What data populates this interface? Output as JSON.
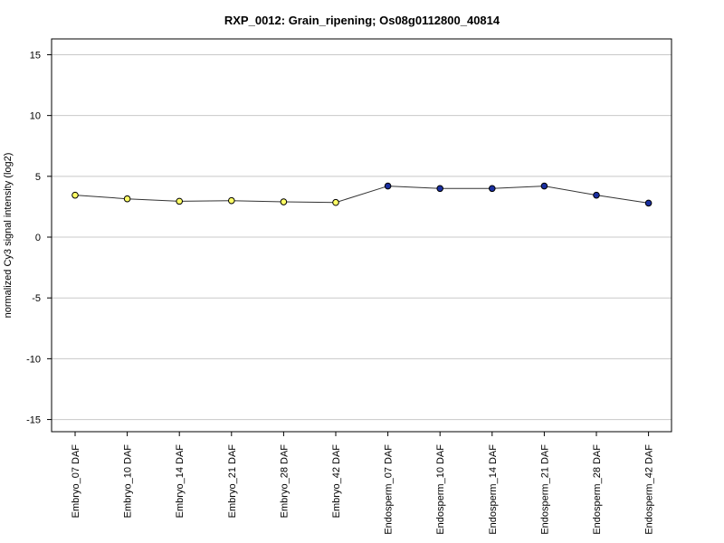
{
  "chart_data": {
    "type": "line",
    "title": "RXP_0012: Grain_ripening; Os08g0112800_40814",
    "xlabel": "",
    "ylabel": "normalized Cy3 signal intensity (log2)",
    "ylim": [
      -16,
      16.3
    ],
    "yticks": [
      15,
      10,
      5,
      0,
      -5,
      -10,
      -15
    ],
    "grid": true,
    "categories": [
      "Embryo_07 DAF",
      "Embryo_10 DAF",
      "Embryo_14 DAF",
      "Embryo_21 DAF",
      "Embryo_28 DAF",
      "Embryo_42 DAF",
      "Endosperm_07 DAF",
      "Endosperm_10 DAF",
      "Endosperm_14 DAF",
      "Endosperm_21 DAF",
      "Endosperm_28 DAF",
      "Endosperm_42 DAF"
    ],
    "series": [
      {
        "values": [
          3.45,
          3.15,
          2.95,
          3.0,
          2.9,
          2.85,
          4.2,
          4.0,
          4.0,
          4.2,
          3.45,
          2.8
        ]
      }
    ],
    "point_colors": [
      "#ffff66",
      "#ffff66",
      "#ffff66",
      "#ffff66",
      "#ffff66",
      "#ffff66",
      "#1a2fa0",
      "#1a2fa0",
      "#1a2fa0",
      "#1a2fa0",
      "#1a2fa0",
      "#1a2fa0"
    ],
    "line_color": "#333333",
    "grid_color": "#c8c8c8"
  }
}
